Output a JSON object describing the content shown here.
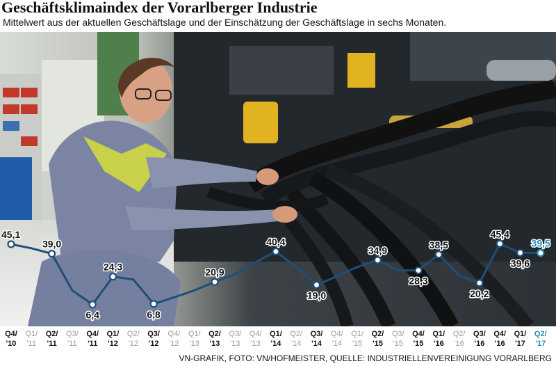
{
  "title": "Geschäftsklimaindex der Vorarlberger Industrie",
  "subtitle": "Mittelwert aus der aktuellen Geschäftslage und der Einschätzung der Geschäftslage in sechs Monaten.",
  "source": "VN-GRAFIK, FOTO: VN/HOFMEISTER, QUELLE: INDUSTRIELLENVEREINIGUNG VORARLBERG",
  "colors": {
    "line": "#1f4e79",
    "highlight": "#2a8fb7",
    "label": "#111111",
    "dim_label": "#9a9a9a",
    "marker_fill": "#ffffff"
  },
  "chart_data": {
    "type": "line",
    "categories": [
      [
        "Q4/",
        "'10"
      ],
      [
        "Q1/",
        "'11"
      ],
      [
        "Q2/",
        "'11"
      ],
      [
        "Q3/",
        "'11"
      ],
      [
        "Q4/",
        "'11"
      ],
      [
        "Q1/",
        "'12"
      ],
      [
        "Q2/",
        "'12"
      ],
      [
        "Q3/",
        "'12"
      ],
      [
        "Q4/",
        "'12"
      ],
      [
        "Q1/",
        "'13"
      ],
      [
        "Q2/",
        "'13"
      ],
      [
        "Q3/",
        "'13"
      ],
      [
        "Q4/",
        "'13"
      ],
      [
        "Q1/",
        "'14"
      ],
      [
        "Q2/",
        "'14"
      ],
      [
        "Q3/",
        "'14"
      ],
      [
        "Q4/",
        "'14"
      ],
      [
        "Q1/",
        "'15"
      ],
      [
        "Q2/",
        "'15"
      ],
      [
        "Q3/",
        "'15"
      ],
      [
        "Q4/",
        "'15"
      ],
      [
        "Q1/",
        "'16"
      ],
      [
        "Q2/",
        "'16"
      ],
      [
        "Q3/",
        "'16"
      ],
      [
        "Q4/",
        "'16"
      ],
      [
        "Q1/",
        "'17"
      ],
      [
        "Q2/",
        "'17"
      ]
    ],
    "category_emphasis": [
      "bold",
      "dim",
      "bold",
      "dim",
      "bold",
      "bold",
      "dim",
      "bold",
      "dim",
      "dim",
      "bold",
      "dim",
      "dim",
      "bold",
      "dim",
      "bold",
      "dim",
      "dim",
      "bold",
      "dim",
      "bold",
      "bold",
      "dim",
      "bold",
      "bold",
      "bold",
      "highlight"
    ],
    "values": [
      45.1,
      42.5,
      39.0,
      15.5,
      6.4,
      24.3,
      22.5,
      6.8,
      11.0,
      15.5,
      20.9,
      26.0,
      33.5,
      40.4,
      30.5,
      19.0,
      24.5,
      30.5,
      34.9,
      28.3,
      28.3,
      38.5,
      25.0,
      20.2,
      45.4,
      39.6,
      39.5
    ],
    "data_labels": [
      "45,1",
      "",
      "39,0",
      "",
      "6,4",
      "24,3",
      "",
      "6,8",
      "",
      "",
      "20,9",
      "",
      "",
      "40,4",
      "",
      "19,0",
      "",
      "",
      "34,9",
      "",
      "28,3",
      "38,5",
      "",
      "20,2",
      "45,4",
      "39,6",
      "39,5"
    ],
    "markers": [
      true,
      false,
      true,
      false,
      true,
      true,
      false,
      true,
      false,
      false,
      true,
      false,
      false,
      true,
      false,
      true,
      false,
      false,
      true,
      false,
      true,
      true,
      false,
      true,
      true,
      true,
      true
    ],
    "label_position": [
      "above",
      "",
      "above",
      "",
      "below",
      "above",
      "",
      "below",
      "",
      "",
      "above",
      "",
      "",
      "above",
      "",
      "below",
      "",
      "",
      "above",
      "",
      "below",
      "above",
      "",
      "below",
      "above",
      "below",
      "above"
    ],
    "highlight_last": true,
    "ylim": [
      0,
      50
    ],
    "grid": false,
    "xlabel": "",
    "ylabel": ""
  }
}
